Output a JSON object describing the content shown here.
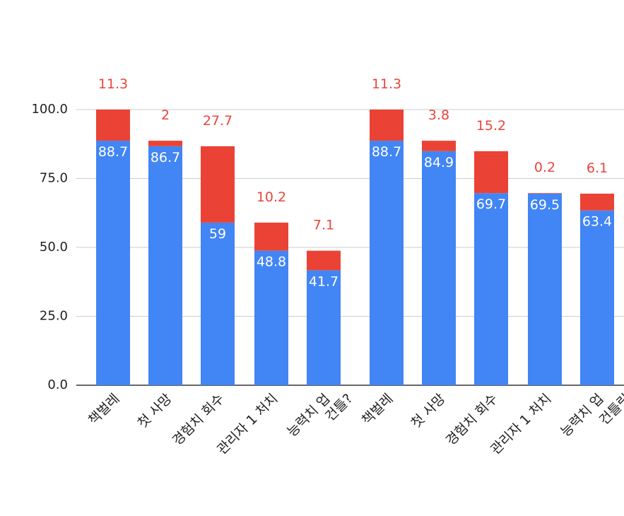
{
  "chart_data": {
    "type": "stacked_bar",
    "categories": [
      "책벌레",
      "첫 사망",
      "경험치 회수",
      "관리자 1 처치",
      "능력치 업",
      "책벌레",
      "첫 사망",
      "경험치 회수",
      "관리자 1 처치",
      "능력치 업"
    ],
    "series": [
      {
        "color": "#4285f4",
        "values": [
          88.7,
          86.7,
          59,
          48.8,
          41.7,
          88.7,
          84.9,
          69.7,
          69.5,
          63.4
        ]
      },
      {
        "color": "#ea4335",
        "values": [
          11.3,
          2,
          27.7,
          10.2,
          7.1,
          11.3,
          3.8,
          15.2,
          0.2,
          6.1
        ]
      }
    ],
    "ylim": [
      0,
      100
    ],
    "yticks": [
      {
        "value": 0,
        "label": "0.0"
      },
      {
        "value": 25,
        "label": "25.0"
      },
      {
        "value": 50,
        "label": "50.0"
      },
      {
        "value": 75,
        "label": "75.0"
      },
      {
        "value": 100,
        "label": "100.0"
      }
    ],
    "grid": true,
    "annotations": [
      "건틀?",
      "건틀릿"
    ]
  }
}
